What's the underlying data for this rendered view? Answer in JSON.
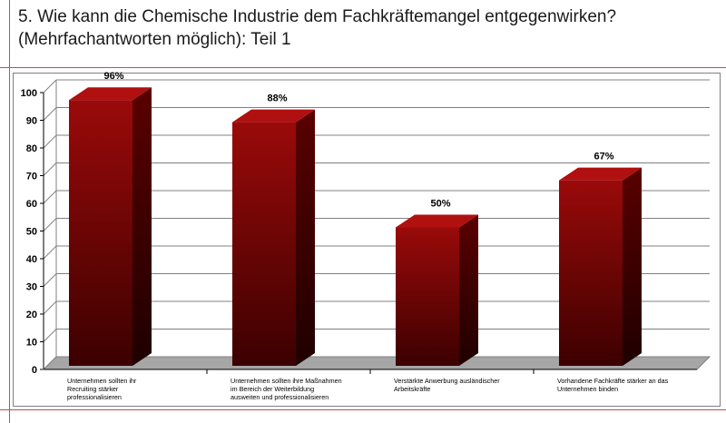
{
  "title": {
    "line1": "5. Wie kann die Chemische Industrie dem Fachkräftemangel entgegenwirken?",
    "line2": "(Mehrfachantworten möglich): Teil 1"
  },
  "chart_data": {
    "type": "bar",
    "categories": [
      "Unternehmen sollten ihr Recruiting stärker professionalisieren",
      "Unternehmen sollten ihre Maßnahmen im Bereich der Weiterbildung ausweiten und professionalisieren",
      "Verstärkte Anwerbung ausländischer Arbeitskräfte",
      "Vorhandene Fachkräfte stärker an das Unternehmen binden"
    ],
    "category_lines": [
      [
        "Unternehmen sollten ihr",
        "Recruiting stärker",
        "professionalisieren"
      ],
      [
        "Unternehmen sollten ihre Maßnahmen",
        "im Bereich der Weiterbildung",
        "ausweiten und professionalisieren"
      ],
      [
        "Verstärkte Anwerbung ausländischer",
        "Arbeitskräfte"
      ],
      [
        "Vorhandene Fachkräfte stärker an das",
        "Unternehmen binden"
      ]
    ],
    "values": [
      96,
      88,
      50,
      67
    ],
    "data_labels": [
      "96%",
      "88%",
      "50%",
      "67%"
    ],
    "yticks": [
      "0",
      "10",
      "20",
      "30",
      "40",
      "50",
      "60",
      "70",
      "80",
      "90",
      "100"
    ],
    "ylim": [
      0,
      100
    ],
    "grid": true,
    "bar_color": "#8b0000",
    "bar_side_color": "#4a0000",
    "bar_top_color": "#b01010",
    "floor_color": "#a6a6a6"
  }
}
